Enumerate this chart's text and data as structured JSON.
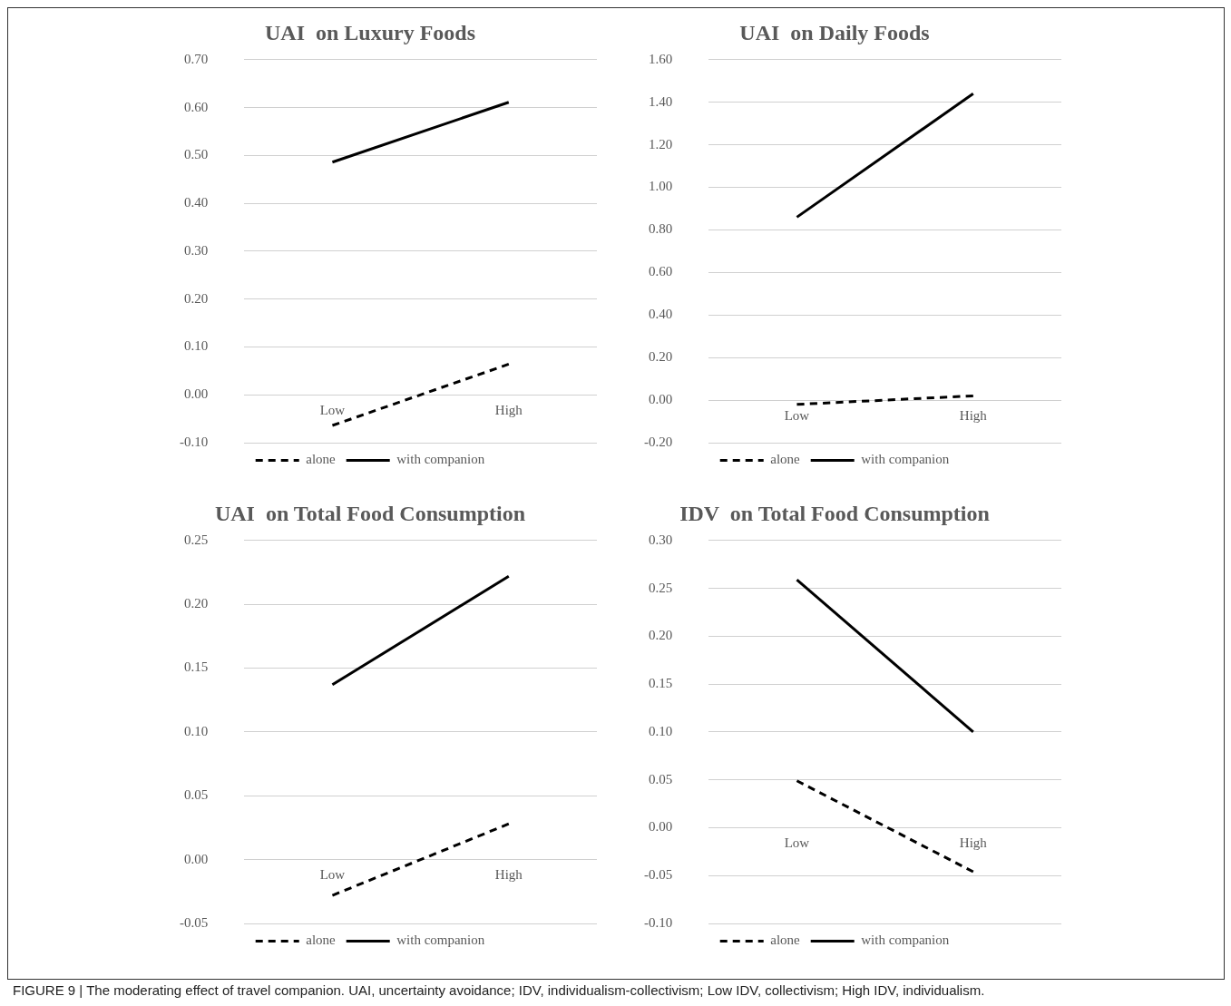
{
  "chart_data": [
    {
      "type": "line",
      "title": "UAI  on Luxury Foods",
      "categories": [
        "Low",
        "High"
      ],
      "ylim": [
        -0.1,
        0.7
      ],
      "yticks": [
        {
          "value": -0.1,
          "label": "-0.10"
        },
        {
          "value": 0,
          "label": "0.00"
        },
        {
          "value": 0.1,
          "label": "0.10"
        },
        {
          "value": 0.2,
          "label": "0.20"
        },
        {
          "value": 0.3,
          "label": "0.30"
        },
        {
          "value": 0.4,
          "label": "0.40"
        },
        {
          "value": 0.5,
          "label": "0.50"
        },
        {
          "value": 0.6,
          "label": "0.60"
        },
        {
          "value": 0.7,
          "label": "0.70"
        }
      ],
      "grid": "y",
      "legend": "bottom",
      "marker": "none",
      "series": [
        {
          "name": "alone",
          "color": "#000000",
          "line_style": "dashed",
          "values": [
            -0.064,
            0.064
          ]
        },
        {
          "name": "with companion",
          "color": "#000000",
          "line_style": "solid",
          "values": [
            0.486,
            0.611
          ]
        }
      ]
    },
    {
      "type": "line",
      "title": "UAI  on Daily Foods",
      "categories": [
        "Low",
        "High"
      ],
      "ylim": [
        -0.2,
        1.6
      ],
      "yticks": [
        {
          "value": -0.2,
          "label": "-0.20"
        },
        {
          "value": 0,
          "label": "0.00"
        },
        {
          "value": 0.2,
          "label": "0.20"
        },
        {
          "value": 0.4,
          "label": "0.40"
        },
        {
          "value": 0.6,
          "label": "0.60"
        },
        {
          "value": 0.8,
          "label": "0.80"
        },
        {
          "value": 1,
          "label": "1.00"
        },
        {
          "value": 1.2,
          "label": "1.20"
        },
        {
          "value": 1.4,
          "label": "1.40"
        },
        {
          "value": 1.6,
          "label": "1.60"
        }
      ],
      "grid": "y",
      "legend": "bottom",
      "marker": "none",
      "series": [
        {
          "name": "alone",
          "color": "#000000",
          "line_style": "dashed",
          "values": [
            -0.02,
            0.02
          ]
        },
        {
          "name": "with companion",
          "color": "#000000",
          "line_style": "solid",
          "values": [
            0.86,
            1.44
          ]
        }
      ]
    },
    {
      "type": "line",
      "title": "UAI  on Total Food Consumption",
      "categories": [
        "Low",
        "High"
      ],
      "ylim": [
        -0.05,
        0.25
      ],
      "yticks": [
        {
          "value": -0.05,
          "label": "-0.05"
        },
        {
          "value": 0,
          "label": "0.00"
        },
        {
          "value": 0.05,
          "label": "0.05"
        },
        {
          "value": 0.1,
          "label": "0.10"
        },
        {
          "value": 0.15,
          "label": "0.15"
        },
        {
          "value": 0.2,
          "label": "0.20"
        },
        {
          "value": 0.25,
          "label": "0.25"
        }
      ],
      "grid": "y",
      "legend": "bottom",
      "marker": "none",
      "series": [
        {
          "name": "alone",
          "color": "#000000",
          "line_style": "dashed",
          "values": [
            -0.028,
            0.028
          ]
        },
        {
          "name": "with companion",
          "color": "#000000",
          "line_style": "solid",
          "values": [
            0.137,
            0.222
          ]
        }
      ]
    },
    {
      "type": "line",
      "title": "IDV  on Total Food Consumption",
      "categories": [
        "Low",
        "High"
      ],
      "ylim": [
        -0.1,
        0.3
      ],
      "yticks": [
        {
          "value": -0.1,
          "label": "-0.10"
        },
        {
          "value": -0.05,
          "label": "-0.05"
        },
        {
          "value": 0,
          "label": "0.00"
        },
        {
          "value": 0.05,
          "label": "0.05"
        },
        {
          "value": 0.1,
          "label": "0.10"
        },
        {
          "value": 0.15,
          "label": "0.15"
        },
        {
          "value": 0.2,
          "label": "0.20"
        },
        {
          "value": 0.25,
          "label": "0.25"
        },
        {
          "value": 0.3,
          "label": "0.30"
        }
      ],
      "grid": "y",
      "legend": "bottom",
      "marker": "none",
      "series": [
        {
          "name": "alone",
          "color": "#000000",
          "line_style": "dashed",
          "values": [
            0.049,
            -0.046
          ]
        },
        {
          "name": "with companion",
          "color": "#000000",
          "line_style": "solid",
          "values": [
            0.259,
            0.1
          ]
        }
      ],
      "annotations": [
        "FIGURE 9 | The moderating effect of travel companion. UAI, uncertainty avoidance; IDV, individualism-collectivism; Low IDV, collectivism; High IDV, individualism."
      ]
    }
  ]
}
